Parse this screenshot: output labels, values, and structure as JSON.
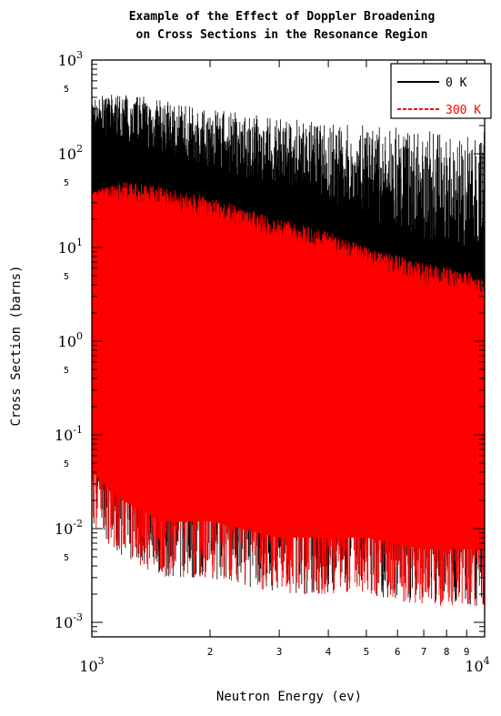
{
  "chart_data": {
    "type": "line",
    "title": "Example of the Effect of Doppler Broadening",
    "subtitle": "on Cross Sections in the Resonance Region",
    "xlabel": "Neutron Energy (ev)",
    "ylabel": "Cross Section (barns)",
    "x_scale": "log",
    "y_scale": "log",
    "xlim": [
      1000,
      10000
    ],
    "ylim": [
      0.0007,
      1000
    ],
    "x_ticks": [
      {
        "value": 1000,
        "label": "10",
        "exp": "3"
      },
      {
        "value": 2000,
        "label": "2"
      },
      {
        "value": 3000,
        "label": "3"
      },
      {
        "value": 4000,
        "label": "4"
      },
      {
        "value": 5000,
        "label": "5"
      },
      {
        "value": 6000,
        "label": "6"
      },
      {
        "value": 7000,
        "label": "7"
      },
      {
        "value": 8000,
        "label": "8"
      },
      {
        "value": 9000,
        "label": "9"
      },
      {
        "value": 10000,
        "label": "10",
        "exp": "4"
      }
    ],
    "y_ticks": [
      {
        "value": 0.001,
        "label": "10",
        "exp": "-3"
      },
      {
        "value": 0.005,
        "label": "5"
      },
      {
        "value": 0.01,
        "label": "10",
        "exp": "-2"
      },
      {
        "value": 0.05,
        "label": "5"
      },
      {
        "value": 0.1,
        "label": "10",
        "exp": "-1"
      },
      {
        "value": 0.5,
        "label": "5"
      },
      {
        "value": 1,
        "label": "10",
        "exp": "0"
      },
      {
        "value": 5,
        "label": "5"
      },
      {
        "value": 10,
        "label": "10",
        "exp": "1"
      },
      {
        "value": 50,
        "label": "5"
      },
      {
        "value": 100,
        "label": "10",
        "exp": "2"
      },
      {
        "value": 500,
        "label": "5"
      },
      {
        "value": 1000,
        "label": "10",
        "exp": "3"
      }
    ],
    "legend_position": "top-right",
    "grid": false,
    "series": [
      {
        "name": "0 K",
        "color": "#000000",
        "envelope_x": [
          1000,
          1200,
          1500,
          2000,
          3000,
          4000,
          5000,
          7000,
          10000
        ],
        "envelope_top": [
          400,
          450,
          380,
          300,
          250,
          220,
          200,
          180,
          170
        ],
        "envelope_fill_top": [
          180,
          140,
          100,
          70,
          45,
          30,
          20,
          12,
          8
        ],
        "envelope_bottom": [
          0.01,
          0.005,
          0.003,
          0.003,
          0.002,
          0.002,
          0.002,
          0.0015,
          0.0015
        ]
      },
      {
        "name": "300 K",
        "color": "#ff0000",
        "envelope_x": [
          1000,
          1200,
          1500,
          2000,
          3000,
          4000,
          5000,
          7000,
          10000
        ],
        "envelope_top": [
          40,
          50,
          45,
          35,
          20,
          15,
          10,
          7,
          5
        ],
        "envelope_fill_top": [
          35,
          30,
          25,
          18,
          12,
          9,
          6,
          4,
          3
        ],
        "envelope_bottom": [
          0.01,
          0.005,
          0.003,
          0.003,
          0.002,
          0.002,
          0.002,
          0.0015,
          0.0015
        ]
      }
    ]
  }
}
